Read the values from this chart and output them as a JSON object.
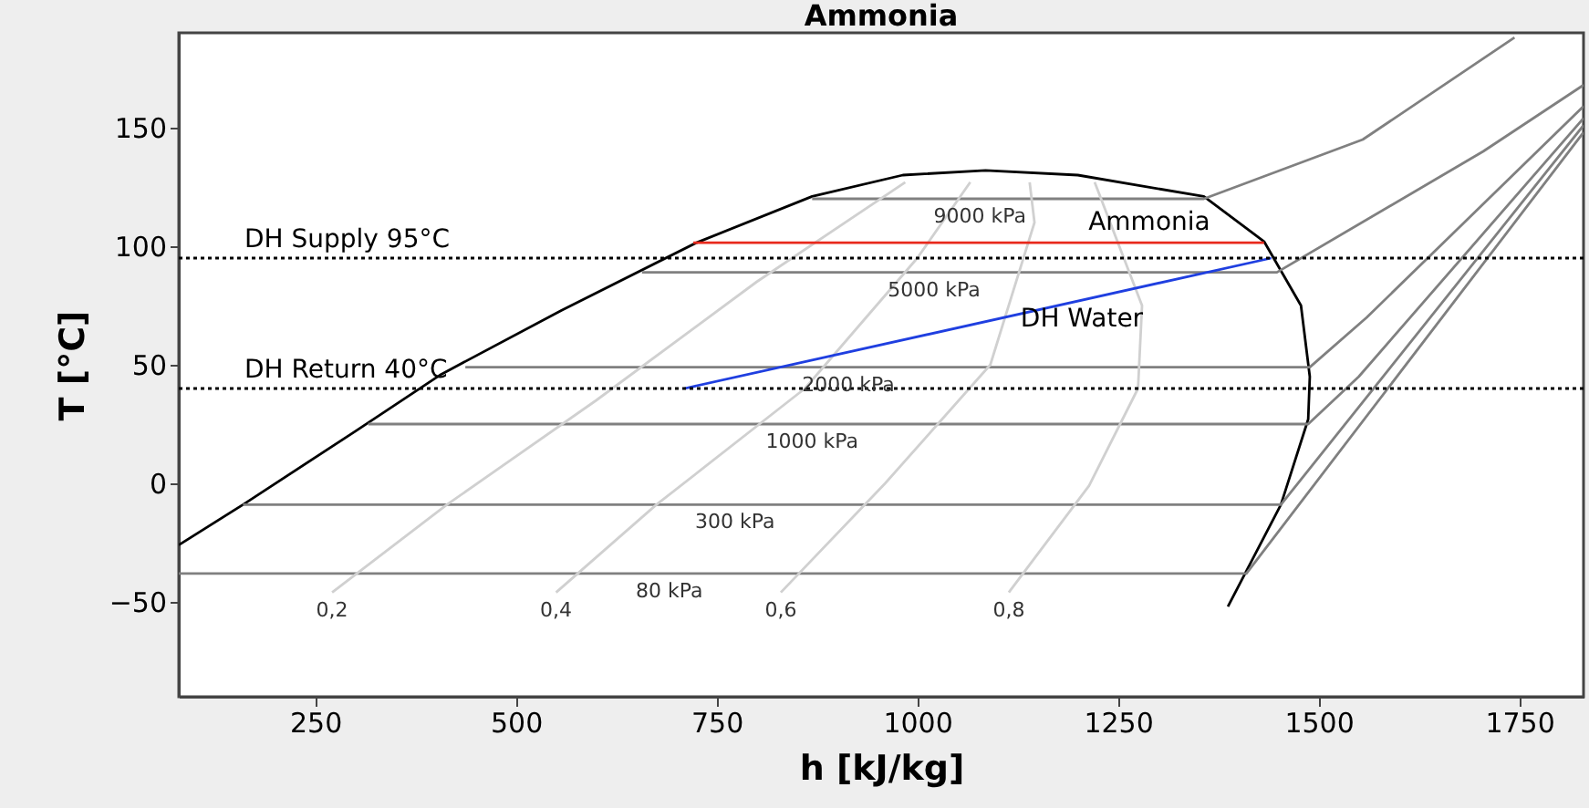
{
  "chart_data": {
    "type": "line",
    "title": "Ammonia",
    "xlabel": "h [kJ/kg]",
    "ylabel": "T [°C]",
    "xlim": [
      80,
      1830
    ],
    "ylim": [
      -90,
      190
    ],
    "xticks": [
      250,
      500,
      750,
      1000,
      1250,
      1500,
      1750
    ],
    "yticks": [
      -50,
      0,
      50,
      100,
      150
    ],
    "grid": false,
    "series": [
      {
        "color": "#000000",
        "x": [
          80,
          160,
          300,
          407,
          557,
          725,
          869,
          982,
          1085,
          1200,
          1357,
          1432,
          1478,
          1489,
          1487,
          1453,
          1410,
          1387
        ],
        "values": [
          -26,
          -9,
          22,
          46,
          73,
          101.5,
          121,
          130,
          132,
          130,
          121,
          102,
          75,
          45,
          27,
          -9,
          -37,
          -52
        ]
      },
      {
        "color": "#808080",
        "x": [
          869,
          1357,
          1555,
          1744
        ],
        "values": [
          120,
          120,
          145,
          188
        ]
      },
      {
        "color": "#808080",
        "x": [
          657,
          1448,
          1705,
          1830
        ],
        "values": [
          89,
          89,
          140,
          168
        ]
      },
      {
        "color": "#808080",
        "x": [
          437,
          1489,
          1560,
          1830
        ],
        "values": [
          49,
          49,
          70,
          159
        ]
      },
      {
        "color": "#808080",
        "x": [
          316,
          1487,
          1550,
          1830
        ],
        "values": [
          25,
          25,
          45,
          154
        ]
      },
      {
        "color": "#808080",
        "x": [
          160,
          1453,
          1830
        ],
        "values": [
          -9,
          -9,
          151
        ]
      },
      {
        "color": "#808080",
        "x": [
          80,
          1410,
          1830
        ],
        "values": [
          -38,
          -38,
          148
        ]
      },
      {
        "color": "#d0d0d0",
        "x": [
          271,
          414,
          600,
          800,
          985
        ],
        "values": [
          -46,
          -9,
          35,
          85,
          127
        ]
      },
      {
        "color": "#d0d0d0",
        "x": [
          550,
          675,
          860,
          1000,
          1066
        ],
        "values": [
          -46,
          -9,
          40,
          95,
          127
        ]
      },
      {
        "color": "#d0d0d0",
        "x": [
          830,
          960,
          1091,
          1146,
          1140
        ],
        "values": [
          -46,
          0,
          50,
          110,
          127
        ]
      },
      {
        "color": "#d0d0d0",
        "x": [
          1114,
          1214,
          1275,
          1280,
          1221
        ],
        "values": [
          -46,
          -1,
          40,
          75,
          127
        ]
      },
      {
        "color": "#e8291c",
        "x": [
          1432,
          721
        ],
        "values": [
          101.5,
          101.5
        ]
      },
      {
        "color": "#1f3fe0",
        "x": [
          710,
          1441
        ],
        "values": [
          40,
          95
        ]
      }
    ],
    "ref_lines": [
      {
        "axis": "y",
        "value": 95,
        "label": "DH Supply 95°C",
        "color": "#000000",
        "line_style": "dotted"
      },
      {
        "axis": "y",
        "value": 40,
        "label": "DH Return 40°C",
        "color": "#000000",
        "line_style": "dotted"
      }
    ],
    "annotations": [
      {
        "text": "9000 kPa",
        "x": 1078,
        "y": 120
      },
      {
        "text": "5000 kPa",
        "x": 1021,
        "y": 89
      },
      {
        "text": "2000 kPa",
        "x": 914,
        "y": 49
      },
      {
        "text": "1000 kPa",
        "x": 869,
        "y": 25
      },
      {
        "text": "300 kPa",
        "x": 773,
        "y": -9
      },
      {
        "text": "80 kPa",
        "x": 691,
        "y": -38
      },
      {
        "text": "0,2",
        "x": 271,
        "y": -46
      },
      {
        "text": "0,4",
        "x": 550,
        "y": -46
      },
      {
        "text": "0,6",
        "x": 830,
        "y": -46
      },
      {
        "text": "0,8",
        "x": 1114,
        "y": -46
      },
      {
        "text": "Ammonia",
        "x": 1289,
        "y": 101.5
      },
      {
        "text": "DH Water",
        "x": 1205,
        "y": 77
      }
    ]
  }
}
